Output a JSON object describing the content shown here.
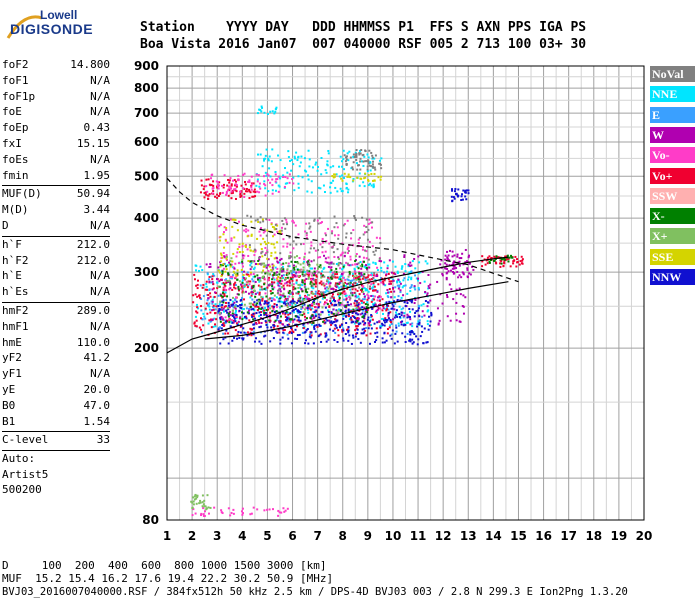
{
  "logo": {
    "line1": "Lowell",
    "line2": "DIGISONDE"
  },
  "header": {
    "labels": "Station    YYYY DAY   DDD HHMMSS P1  FFS S AXN PPS IGA PS",
    "values": "Boa Vista 2016 Jan07  007 040000 RSF 005 2 713 100 03+ 30"
  },
  "sidebar": {
    "group1": [
      {
        "k": "foF2",
        "v": "14.800"
      },
      {
        "k": "foF1",
        "v": "N/A"
      },
      {
        "k": "foF1p",
        "v": "N/A"
      },
      {
        "k": "foE",
        "v": "N/A"
      },
      {
        "k": "foEp",
        "v": "0.43"
      },
      {
        "k": "fxI",
        "v": "15.15"
      },
      {
        "k": "foEs",
        "v": "N/A"
      },
      {
        "k": "fmin",
        "v": "1.95"
      }
    ],
    "group2": [
      {
        "k": "MUF(D)",
        "v": "50.94"
      },
      {
        "k": "M(D)",
        "v": "3.44"
      },
      {
        "k": "D",
        "v": "N/A"
      }
    ],
    "group3": [
      {
        "k": "h`F",
        "v": "212.0"
      },
      {
        "k": "h`F2",
        "v": "212.0"
      },
      {
        "k": "h`E",
        "v": "N/A"
      },
      {
        "k": "h`Es",
        "v": "N/A"
      }
    ],
    "group4": [
      {
        "k": "hmF2",
        "v": "289.0"
      },
      {
        "k": "hmF1",
        "v": "N/A"
      },
      {
        "k": "hmE",
        "v": "110.0"
      },
      {
        "k": "yF2",
        "v": "41.2"
      },
      {
        "k": "yF1",
        "v": "N/A"
      },
      {
        "k": "yE",
        "v": "20.0"
      },
      {
        "k": "B0",
        "v": "47.0"
      },
      {
        "k": "B1",
        "v": "1.54"
      }
    ],
    "group5": [
      {
        "k": "C-level",
        "v": "33"
      }
    ],
    "auto": [
      "Auto:",
      "Artist5",
      "500200"
    ]
  },
  "footer": {
    "d_line": "D     100  200  400  600  800 1000 1500 3000 [km]",
    "muf_line": "MUF  15.2 15.4 16.2 17.6 19.4 22.2 30.2 50.9 [MHz]",
    "file_line": "BVJ03_2016007040000.RSF / 384fx512h 50 kHz 2.5 km / DPS-4D BVJ03 003 / 2.8 N 299.3 E Ion2Png 1.3.20"
  },
  "legend": [
    {
      "label": "NoVal",
      "color": "#808080"
    },
    {
      "label": "NNE",
      "color": "#00e5ff"
    },
    {
      "label": "E",
      "color": "#3aa0ff"
    },
    {
      "label": "W",
      "color": "#b000b0"
    },
    {
      "label": "Vo-",
      "color": "#ff3cc8"
    },
    {
      "label": "Vo+",
      "color": "#f00030"
    },
    {
      "label": "SSW",
      "color": "#ffb0b0"
    },
    {
      "label": "X-",
      "color": "#008000"
    },
    {
      "label": "X+",
      "color": "#80c060"
    },
    {
      "label": "SSE",
      "color": "#d4d400"
    },
    {
      "label": "NNW",
      "color": "#1010d0"
    }
  ],
  "chart_data": {
    "type": "scatter",
    "x_ticks": [
      "1",
      "2",
      "3",
      "4",
      "5",
      "6",
      "7",
      "8",
      "9",
      "10",
      "11",
      "12",
      "13",
      "14",
      "15",
      "16",
      "17",
      "18",
      "19",
      "20"
    ],
    "y_ticks": [
      "80",
      "200",
      "300",
      "400",
      "500",
      "600",
      "700",
      "800",
      "900"
    ],
    "xlim": [
      1,
      20
    ],
    "y_scale": "log",
    "ylim": [
      80,
      900
    ],
    "grid": true,
    "curves": {
      "profile_solid": [
        [
          1.0,
          195
        ],
        [
          2,
          210
        ],
        [
          3,
          218
        ],
        [
          4,
          227
        ],
        [
          5,
          236
        ],
        [
          6,
          248
        ],
        [
          7,
          262
        ],
        [
          8,
          274
        ],
        [
          9,
          284
        ],
        [
          10,
          292
        ],
        [
          11,
          300
        ],
        [
          12,
          308
        ],
        [
          13,
          316
        ],
        [
          14,
          322
        ],
        [
          14.6,
          325
        ]
      ],
      "second_solid": [
        [
          2.5,
          210
        ],
        [
          4,
          214
        ],
        [
          6,
          225
        ],
        [
          8,
          240
        ],
        [
          10,
          255
        ],
        [
          12,
          268
        ],
        [
          13,
          275
        ],
        [
          14.6,
          285
        ]
      ],
      "dashed": [
        [
          1.0,
          495
        ],
        [
          1.5,
          460
        ],
        [
          2,
          435
        ],
        [
          3,
          405
        ],
        [
          4,
          385
        ],
        [
          6,
          362
        ],
        [
          8,
          348
        ],
        [
          10,
          338
        ],
        [
          12,
          320
        ],
        [
          13,
          312
        ],
        [
          14,
          298
        ],
        [
          15,
          285
        ]
      ]
    },
    "clusters": [
      {
        "trace": "NNE",
        "x": [
          2.1,
          11.4
        ],
        "y": [
          225,
          320
        ],
        "n": 380
      },
      {
        "trace": "E",
        "x": [
          2.3,
          11.2
        ],
        "y": [
          215,
          305
        ],
        "n": 200
      },
      {
        "trace": "Vo+",
        "x": [
          2.0,
          10.0
        ],
        "y": [
          215,
          300
        ],
        "n": 500
      },
      {
        "trace": "Vo-",
        "x": [
          3.0,
          9.5
        ],
        "y": [
          230,
          400
        ],
        "n": 300
      },
      {
        "trace": "W",
        "x": [
          2.5,
          13.0
        ],
        "y": [
          228,
          330
        ],
        "n": 320
      },
      {
        "trace": "NNW",
        "x": [
          3.0,
          11.5
        ],
        "y": [
          205,
          260
        ],
        "n": 450
      },
      {
        "trace": "X-",
        "x": [
          3.0,
          9.0
        ],
        "y": [
          230,
          320
        ],
        "n": 180
      },
      {
        "trace": "X+",
        "x": [
          3.0,
          9.0
        ],
        "y": [
          240,
          330
        ],
        "n": 120
      },
      {
        "trace": "SSE",
        "x": [
          3.0,
          5.5
        ],
        "y": [
          290,
          400
        ],
        "n": 90
      },
      {
        "trace": "NoVal",
        "x": [
          4.0,
          9.5
        ],
        "y": [
          250,
          410
        ],
        "n": 140
      },
      {
        "trace": "Vo+",
        "x": [
          2.2,
          4.5
        ],
        "y": [
          445,
          495
        ],
        "n": 90
      },
      {
        "trace": "NNE",
        "x": [
          4.5,
          9.5
        ],
        "y": [
          460,
          580
        ],
        "n": 160
      },
      {
        "trace": "Vo-",
        "x": [
          2.5,
          6.0
        ],
        "y": [
          450,
          510
        ],
        "n": 80
      },
      {
        "trace": "NoVal",
        "x": [
          8.0,
          9.5
        ],
        "y": [
          520,
          580
        ],
        "n": 60
      },
      {
        "trace": "SSE",
        "x": [
          7.5,
          9.5
        ],
        "y": [
          490,
          510
        ],
        "n": 30
      },
      {
        "trace": "NNE",
        "x": [
          4.4,
          5.5
        ],
        "y": [
          700,
          730
        ],
        "n": 15
      },
      {
        "trace": "NNW",
        "x": [
          12.3,
          13.0
        ],
        "y": [
          440,
          470
        ],
        "n": 30
      },
      {
        "trace": "W",
        "x": [
          12.0,
          13.2
        ],
        "y": [
          290,
          340
        ],
        "n": 60
      },
      {
        "trace": "Vo+",
        "x": [
          13.5,
          15.2
        ],
        "y": [
          310,
          330
        ],
        "n": 60
      },
      {
        "trace": "X-",
        "x": [
          13.8,
          14.8
        ],
        "y": [
          315,
          330
        ],
        "n": 20
      },
      {
        "trace": "Vo-",
        "x": [
          1.9,
          5.8
        ],
        "y": [
          82,
          86
        ],
        "n": 40
      },
      {
        "trace": "X+",
        "x": [
          1.9,
          2.7
        ],
        "y": [
          85,
          92
        ],
        "n": 30
      }
    ]
  }
}
